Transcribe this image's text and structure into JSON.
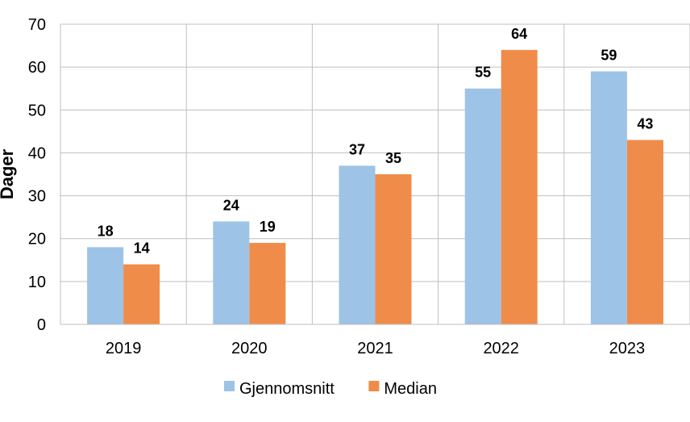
{
  "chart_data": {
    "type": "bar",
    "categories": [
      "2019",
      "2020",
      "2021",
      "2022",
      "2023"
    ],
    "series": [
      {
        "name": "Gjennomsnitt",
        "color": "#9DC3E6",
        "values": [
          18,
          24,
          37,
          55,
          59
        ]
      },
      {
        "name": "Median",
        "color": "#F08C49",
        "values": [
          14,
          19,
          35,
          64,
          43
        ]
      }
    ],
    "title": "",
    "xlabel": "",
    "ylabel": "Dager",
    "ylim": [
      0,
      70
    ],
    "yticks": [
      0,
      10,
      20,
      30,
      40,
      50,
      60,
      70
    ],
    "grid": true,
    "legend_position": "bottom",
    "data_labels": true
  }
}
